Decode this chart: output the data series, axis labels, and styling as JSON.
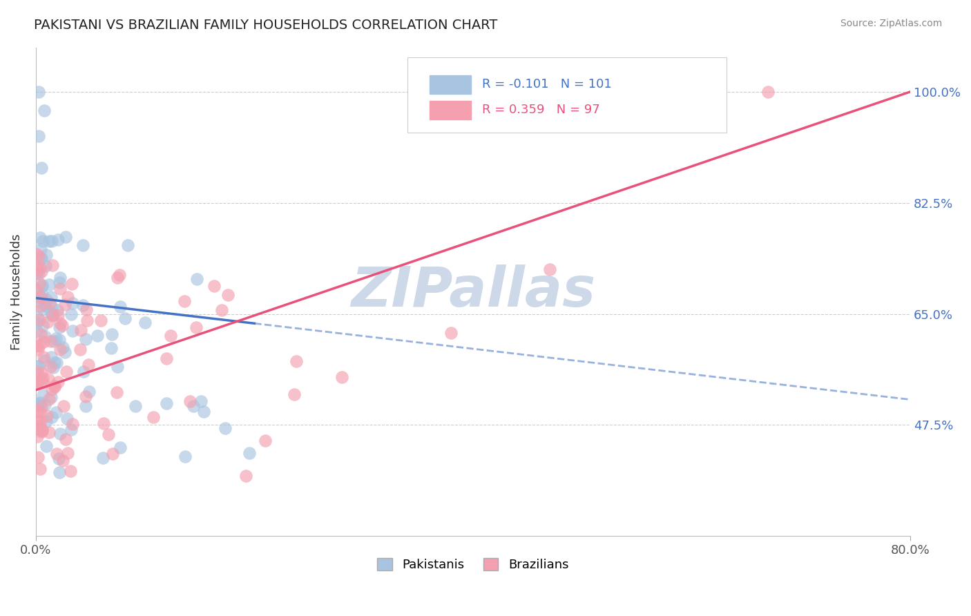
{
  "title": "PAKISTANI VS BRAZILIAN FAMILY HOUSEHOLDS CORRELATION CHART",
  "source": "Source: ZipAtlas.com",
  "ylabel": "Family Households",
  "ytick_labels": [
    "100.0%",
    "82.5%",
    "65.0%",
    "47.5%"
  ],
  "ytick_vals": [
    1.0,
    0.825,
    0.65,
    0.475
  ],
  "xlim": [
    0.0,
    0.8
  ],
  "ylim": [
    0.3,
    1.07
  ],
  "r_pakistani": -0.101,
  "n_pakistani": 101,
  "r_brazilian": 0.359,
  "n_brazilian": 97,
  "pakistani_color": "#a8c4e0",
  "brazilian_color": "#f4a0b0",
  "pakistani_line_color": "#4472c4",
  "brazilian_line_color": "#e8527a",
  "watermark": "ZIPallas",
  "watermark_color": "#cdd8e8",
  "legend_label_pakistani": "Pakistanis",
  "legend_label_brazilian": "Brazilians",
  "pak_line_x0": 0.0,
  "pak_line_y0": 0.675,
  "pak_line_x1": 0.2,
  "pak_line_y1": 0.635,
  "pak_line_x1_dashed": 0.8,
  "pak_line_y1_dashed": 0.515,
  "bra_line_x0": 0.0,
  "bra_line_y0": 0.53,
  "bra_line_x1": 0.8,
  "bra_line_y1": 1.0
}
